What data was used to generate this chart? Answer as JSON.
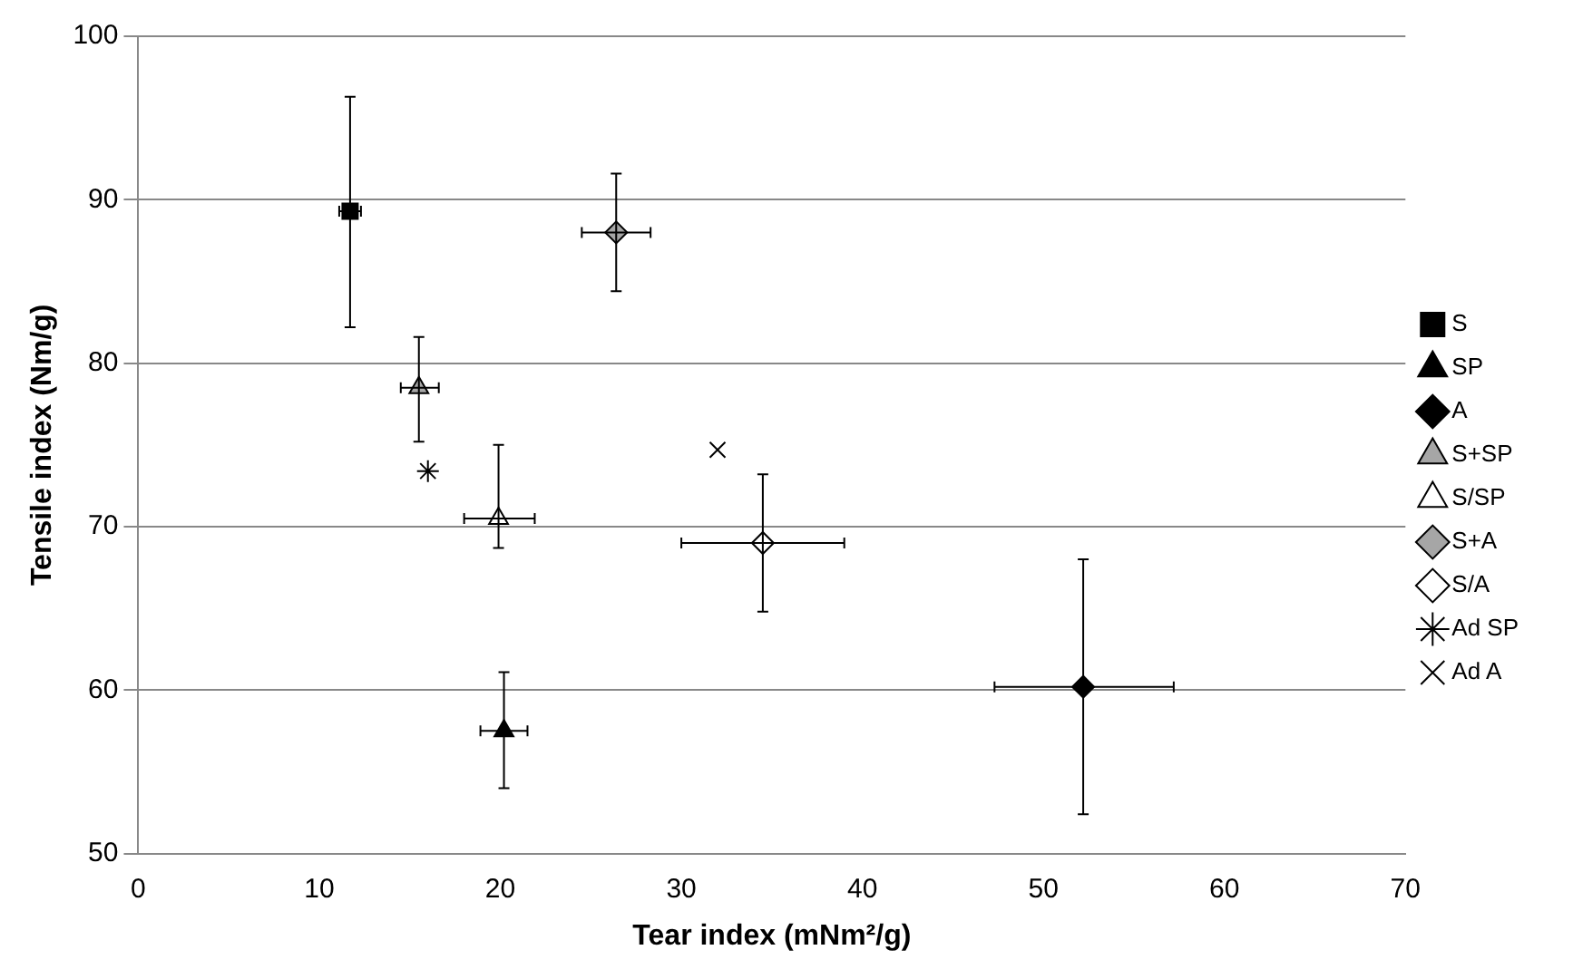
{
  "chart_data": {
    "type": "scatter",
    "xlabel": "Tear index (mNm²/g)",
    "ylabel": "Tensile index (Nm/g)",
    "xlim": [
      0,
      70
    ],
    "xticks": [
      0,
      10,
      20,
      30,
      40,
      50,
      60,
      70
    ],
    "ylim": [
      50,
      100
    ],
    "yticks": [
      50,
      60,
      70,
      80,
      90,
      100
    ],
    "grid": "y",
    "legend": "right",
    "series": [
      {
        "name": "S",
        "color": "#000000",
        "marker": "square",
        "x": [
          11.7
        ],
        "values": [
          89.3
        ],
        "errors": [
          [
            82.2,
            96.3
          ]
        ],
        "xerrors": [
          [
            11.1,
            12.3
          ]
        ]
      },
      {
        "name": "SP",
        "color": "#000000",
        "marker": "triangle",
        "x": [
          20.2
        ],
        "values": [
          57.5
        ],
        "errors": [
          [
            54.0,
            61.1
          ]
        ],
        "xerrors": [
          [
            18.9,
            21.5
          ]
        ]
      },
      {
        "name": "A",
        "color": "#000000",
        "marker": "diamond",
        "x": [
          52.2
        ],
        "values": [
          60.2
        ],
        "errors": [
          [
            52.4,
            68.0
          ]
        ],
        "xerrors": [
          [
            47.3,
            57.2
          ]
        ]
      },
      {
        "name": "S+SP",
        "color": "#a6a6a6",
        "marker": "triangle",
        "x": [
          15.5
        ],
        "values": [
          78.5
        ],
        "errors": [
          [
            75.2,
            81.6
          ]
        ],
        "xerrors": [
          [
            14.5,
            16.6
          ]
        ]
      },
      {
        "name": "S/SP",
        "color": "#ffffff",
        "marker": "triangle",
        "x": [
          19.9
        ],
        "values": [
          70.5
        ],
        "errors": [
          [
            68.7,
            75.0
          ]
        ],
        "xerrors": [
          [
            18.0,
            21.9
          ]
        ]
      },
      {
        "name": "S+A",
        "color": "#a6a6a6",
        "marker": "diamond",
        "x": [
          26.4
        ],
        "values": [
          88.0
        ],
        "errors": [
          [
            84.4,
            91.6
          ]
        ],
        "xerrors": [
          [
            24.5,
            28.3
          ]
        ]
      },
      {
        "name": "S/A",
        "color": "#ffffff",
        "marker": "diamond",
        "x": [
          34.5
        ],
        "values": [
          69.0
        ],
        "errors": [
          [
            64.8,
            73.2
          ]
        ],
        "xerrors": [
          [
            30.0,
            39.0
          ]
        ]
      },
      {
        "name": "Ad SP",
        "color": "#000000",
        "x": [
          16.0
        ],
        "values": [
          73.4
        ]
      },
      {
        "name": "Ad A",
        "color": "#000000",
        "marker": "cross",
        "x": [
          32.0
        ],
        "values": [
          74.7
        ]
      }
    ]
  }
}
